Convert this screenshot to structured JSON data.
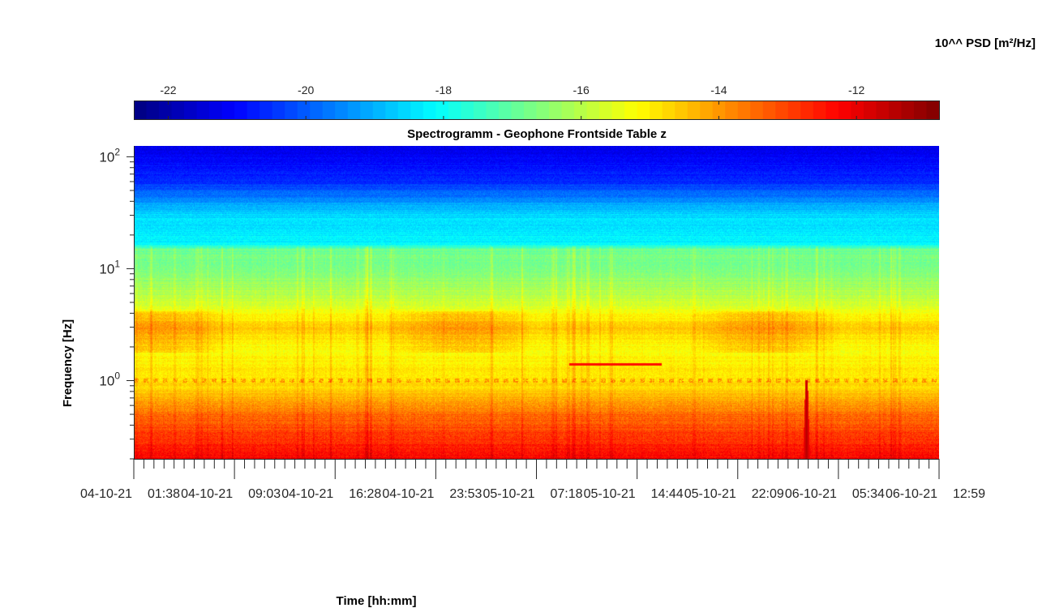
{
  "chart_data": {
    "type": "heatmap",
    "title": "Spectrogramm - Geophone Frontside Table z",
    "xlabel": "Time [hh:mm]",
    "ylabel": "Frequency [Hz]",
    "y_scale": "log",
    "ylim": [
      0.2,
      125
    ],
    "y_ticks": [
      {
        "value": 1,
        "base": "10",
        "exp": "0"
      },
      {
        "value": 10,
        "base": "10",
        "exp": "1"
      },
      {
        "value": 100,
        "base": "10",
        "exp": "2"
      }
    ],
    "x_start": "04-10-21 01:38",
    "x_end": "06-10-21 12:59",
    "x_tick_labels": [
      "04-10-21 01:38",
      "04-10-21 09:03",
      "04-10-21 16:28",
      "04-10-21 23:53",
      "05-10-21 07:18",
      "05-10-21 14:44",
      "05-10-21 22:09",
      "06-10-21 05:34",
      "06-10-21 12:59"
    ],
    "colorbar": {
      "label": "10^^ PSD [m²/Hz]",
      "colormap": "jet",
      "range": [
        -22.5,
        -10.8
      ],
      "ticks": [
        -22,
        -20,
        -18,
        -16,
        -14,
        -12
      ],
      "tick_labels": [
        "-22",
        "-20",
        "-18",
        "-16",
        "-14",
        "-12"
      ]
    },
    "psd_profile_log10": [
      {
        "freq": 0.2,
        "psd": -12.2
      },
      {
        "freq": 0.3,
        "psd": -12.8
      },
      {
        "freq": 0.5,
        "psd": -13.5
      },
      {
        "freq": 0.7,
        "psd": -14.3
      },
      {
        "freq": 1.0,
        "psd": -14.9
      },
      {
        "freq": 2.0,
        "psd": -15.2
      },
      {
        "freq": 3.0,
        "psd": -14.6
      },
      {
        "freq": 5.0,
        "psd": -15.8
      },
      {
        "freq": 10.0,
        "psd": -16.7
      },
      {
        "freq": 15.0,
        "psd": -16.9
      },
      {
        "freq": 16.5,
        "psd": -18.2
      },
      {
        "freq": 30.0,
        "psd": -18.5
      },
      {
        "freq": 40.0,
        "psd": -19.3
      },
      {
        "freq": 60.0,
        "psd": -20.6
      },
      {
        "freq": 125.0,
        "psd": -21.3
      }
    ],
    "features": [
      {
        "type": "line",
        "freq": 1.4,
        "t_start": 0.54,
        "t_end": 0.655,
        "psd": -12.4
      },
      {
        "type": "spike",
        "t": 0.835,
        "f_low": 0.2,
        "f_high": 1.0,
        "psd": -11.4
      }
    ]
  }
}
